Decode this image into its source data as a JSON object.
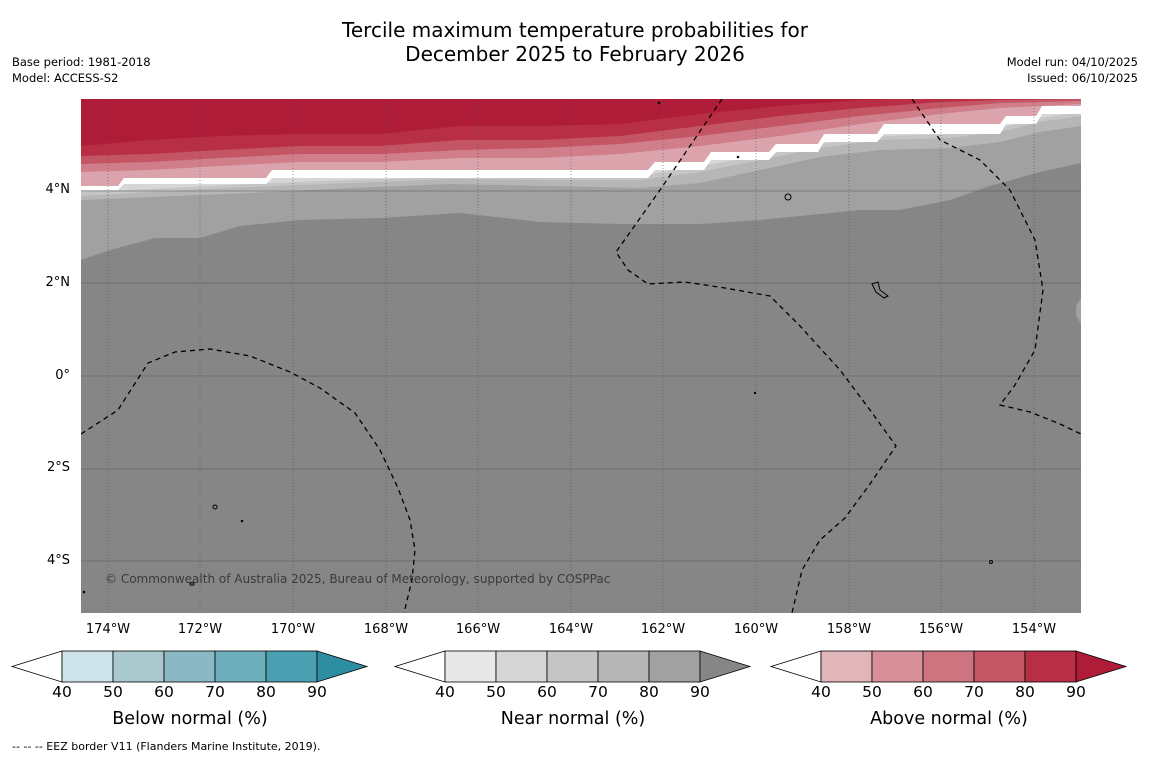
{
  "title": {
    "line1": "Tercile maximum temperature probabilities for",
    "line2": "December 2025 to February 2026"
  },
  "meta_left": {
    "base_period": "Base period: 1981-2018",
    "model": "Model: ACCESS-S2"
  },
  "meta_right": {
    "model_run": "Model run: 04/10/2025",
    "issued": "Issued: 06/10/2025"
  },
  "map": {
    "lat_labels": [
      "4°N",
      "2°N",
      "0°",
      "2°S",
      "4°S"
    ],
    "lon_labels": [
      "174°W",
      "172°W",
      "170°W",
      "168°W",
      "166°W",
      "164°W",
      "162°W",
      "160°W",
      "158°W",
      "156°W",
      "154°W"
    ],
    "credit": "© Commonwealth of Australia 2025, Bureau of Meteorology, supported by COSPPac",
    "colors": {
      "ocean_near_90": "#868686",
      "near_80": "#a1a1a1",
      "near_70": "#b6b6b6",
      "near_60": "#c5c5c5",
      "near_50": "#d6d6d6",
      "above_50": "#dba4ad",
      "above_60": "#cf7e8a",
      "above_70": "#c45565",
      "above_80": "#b82f45",
      "above_90": "#ae1c38"
    }
  },
  "colorbars": [
    {
      "name": "below",
      "label": "Below normal (%)",
      "ticks": [
        "40",
        "50",
        "60",
        "70",
        "80",
        "90"
      ],
      "colors": [
        "#cbe3e9",
        "#a9c9cf",
        "#8bb8c4",
        "#6daebd",
        "#4aa0b1",
        "#2d8ea2"
      ]
    },
    {
      "name": "near",
      "label": "Near normal (%)",
      "ticks": [
        "40",
        "50",
        "60",
        "70",
        "80",
        "90"
      ],
      "colors": [
        "#e8e8e8",
        "#d6d6d6",
        "#c5c5c5",
        "#b6b6b6",
        "#a1a1a1",
        "#868686"
      ]
    },
    {
      "name": "above",
      "label": "Above normal (%)",
      "ticks": [
        "40",
        "50",
        "60",
        "70",
        "80",
        "90"
      ],
      "colors": [
        "#e2b5bb",
        "#d7909a",
        "#cd7480",
        "#c45565",
        "#b82f45",
        "#ae1c38"
      ]
    }
  ],
  "footnote": "--  --  -- EEZ border V11 (Flanders Marine Institute, 2019)."
}
